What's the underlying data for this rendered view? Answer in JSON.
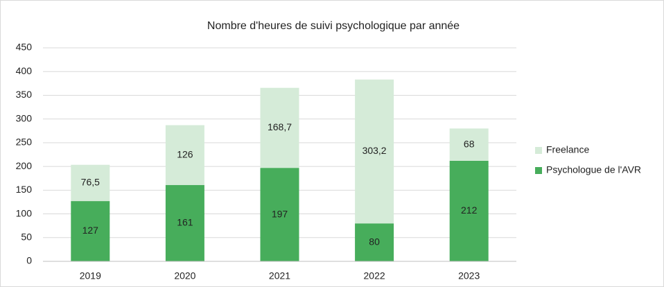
{
  "chart_data": {
    "type": "stacked_bar",
    "title": "Nombre d'heures de suivi psychologique par année",
    "categories": [
      "2019",
      "2020",
      "2021",
      "2022",
      "2023"
    ],
    "series": [
      {
        "name": "Psychologue de l'AVR",
        "color": "#47ad5b",
        "values": [
          127,
          161,
          197,
          80,
          212
        ]
      },
      {
        "name": "Freelance",
        "color": "#d5ebd8",
        "values": [
          76.5,
          126,
          168.7,
          303.2,
          68
        ],
        "value_labels": [
          "76,5",
          "126",
          "168,7",
          "303,2",
          "68"
        ]
      }
    ],
    "ylim": [
      0,
      450
    ],
    "yticks": [
      0,
      50,
      100,
      150,
      200,
      250,
      300,
      350,
      400,
      450
    ],
    "grid": true,
    "legend": "right"
  }
}
